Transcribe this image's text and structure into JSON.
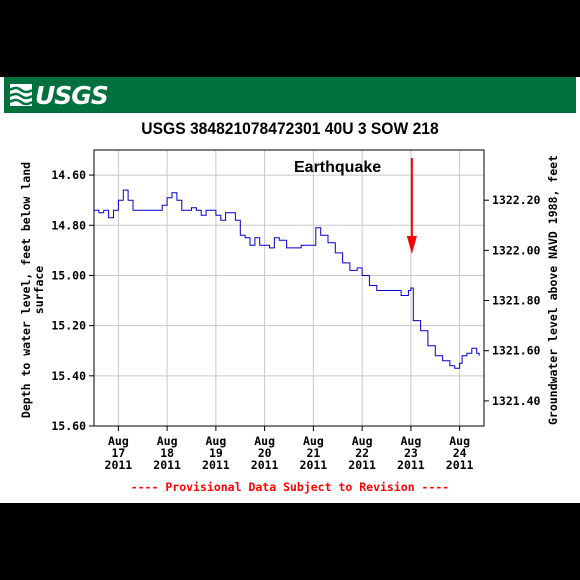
{
  "header": {
    "agency": "USGS",
    "brand_color": "#00703c"
  },
  "chart_data": {
    "type": "line",
    "title": "USGS 384821078472301 40U  3 SOW 218",
    "ylabel": "Depth to water level, feet below land surface",
    "ylabel_right": "Groundwater level above NAVD 1988, feet",
    "ylim": [
      15.6,
      14.5
    ],
    "ylim_right": [
      1321.3,
      1322.4
    ],
    "y_ticks": [
      "14.60",
      "14.80",
      "15.00",
      "15.20",
      "15.40",
      "15.60"
    ],
    "y_ticks_right": [
      "1322.20",
      "1322.00",
      "1321.80",
      "1321.60",
      "1321.40"
    ],
    "x_ticks": [
      {
        "month": "Aug",
        "day": "17",
        "year": "2011"
      },
      {
        "month": "Aug",
        "day": "18",
        "year": "2011"
      },
      {
        "month": "Aug",
        "day": "19",
        "year": "2011"
      },
      {
        "month": "Aug",
        "day": "20",
        "year": "2011"
      },
      {
        "month": "Aug",
        "day": "21",
        "year": "2011"
      },
      {
        "month": "Aug",
        "day": "22",
        "year": "2011"
      },
      {
        "month": "Aug",
        "day": "23",
        "year": "2011"
      },
      {
        "month": "Aug",
        "day": "24",
        "year": "2011"
      }
    ],
    "xlim_days": [
      16.5,
      24.5
    ],
    "series": [
      {
        "color": "#0000cc",
        "points": [
          [
            16.5,
            14.74
          ],
          [
            16.6,
            14.75
          ],
          [
            16.7,
            14.74
          ],
          [
            16.8,
            14.77
          ],
          [
            16.9,
            14.74
          ],
          [
            17.0,
            14.7
          ],
          [
            17.1,
            14.66
          ],
          [
            17.2,
            14.7
          ],
          [
            17.3,
            14.74
          ],
          [
            17.5,
            14.74
          ],
          [
            17.7,
            14.74
          ],
          [
            17.9,
            14.72
          ],
          [
            18.0,
            14.69
          ],
          [
            18.1,
            14.67
          ],
          [
            18.2,
            14.7
          ],
          [
            18.3,
            14.74
          ],
          [
            18.5,
            14.73
          ],
          [
            18.6,
            14.74
          ],
          [
            18.7,
            14.76
          ],
          [
            18.8,
            14.74
          ],
          [
            18.9,
            14.74
          ],
          [
            19.0,
            14.76
          ],
          [
            19.1,
            14.78
          ],
          [
            19.2,
            14.75
          ],
          [
            19.3,
            14.75
          ],
          [
            19.4,
            14.78
          ],
          [
            19.5,
            14.84
          ],
          [
            19.6,
            14.85
          ],
          [
            19.7,
            14.88
          ],
          [
            19.8,
            14.85
          ],
          [
            19.9,
            14.88
          ],
          [
            20.0,
            14.88
          ],
          [
            20.1,
            14.89
          ],
          [
            20.2,
            14.85
          ],
          [
            20.3,
            14.86
          ],
          [
            20.45,
            14.89
          ],
          [
            20.6,
            14.89
          ],
          [
            20.75,
            14.88
          ],
          [
            20.85,
            14.88
          ],
          [
            20.95,
            14.88
          ],
          [
            21.05,
            14.81
          ],
          [
            21.15,
            14.84
          ],
          [
            21.3,
            14.87
          ],
          [
            21.45,
            14.91
          ],
          [
            21.6,
            14.95
          ],
          [
            21.75,
            14.98
          ],
          [
            21.9,
            14.97
          ],
          [
            22.0,
            15.0
          ],
          [
            22.15,
            15.04
          ],
          [
            22.3,
            15.06
          ],
          [
            22.5,
            15.06
          ],
          [
            22.65,
            15.06
          ],
          [
            22.8,
            15.08
          ],
          [
            22.95,
            15.06
          ],
          [
            23.0,
            15.05
          ],
          [
            23.05,
            15.18
          ],
          [
            23.2,
            15.22
          ],
          [
            23.35,
            15.28
          ],
          [
            23.5,
            15.32
          ],
          [
            23.65,
            15.34
          ],
          [
            23.8,
            15.36
          ],
          [
            23.9,
            15.37
          ],
          [
            24.0,
            15.35
          ],
          [
            24.05,
            15.32
          ],
          [
            24.15,
            15.31
          ],
          [
            24.25,
            15.29
          ],
          [
            24.35,
            15.31
          ],
          [
            24.4,
            15.32
          ]
        ]
      }
    ],
    "annotation": {
      "text": "Earthquake",
      "arrow_color": "#ff0000",
      "arrow_at_day": 23.0
    },
    "grid": true,
    "footer": "---- Provisional Data Subject to Revision ----"
  }
}
